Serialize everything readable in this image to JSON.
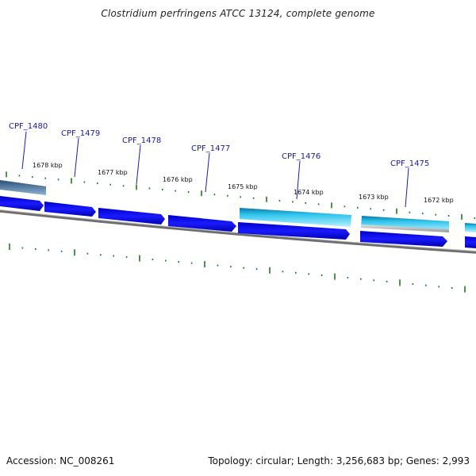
{
  "title": "Clostridium perfringens ATCC 13124, complete genome",
  "footer": {
    "accession": "Accession: NC_008261",
    "summary": "Topology: circular; Length: 3,256,683 bp; Genes: 2,993"
  },
  "colors": {
    "forward_cds": "#0000e6",
    "reverse_cds_light": "#33c8e8",
    "reverse_cds_dark": "#4f7fa8",
    "backbone": "#777777",
    "ticks": "#1e7a1e",
    "gene_label": "#1a1aa6"
  },
  "gene_labels": [
    "CPF_1480",
    "CPF_1479",
    "CPF_1478",
    "CPF_1477",
    "CPF_1476",
    "CPF_1475"
  ],
  "kbp_labels": [
    "1678 kbp",
    "1677 kbp",
    "1676 kbp",
    "1675 kbp",
    "1674 kbp",
    "1673 kbp",
    "1672 kbp"
  ]
}
